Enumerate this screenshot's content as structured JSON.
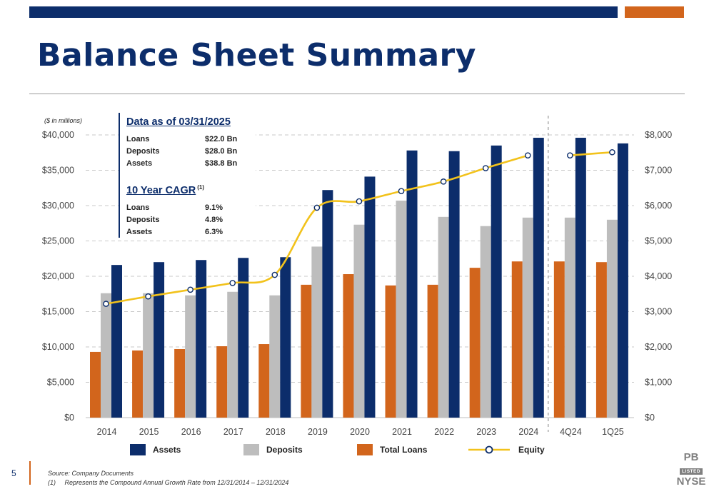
{
  "header": {
    "title": "Balance Sheet Summary"
  },
  "units_note": "($ in millions)",
  "info_box": {
    "heading": "Data as of 03/31/2025",
    "rows": [
      {
        "label": "Loans",
        "value": "$22.0 Bn"
      },
      {
        "label": "Deposits",
        "value": "$28.0 Bn"
      },
      {
        "label": "Assets",
        "value": "$38.8 Bn"
      }
    ],
    "cagr_heading": "10 Year CAGR",
    "cagr_note": "(1)",
    "cagr_rows": [
      {
        "label": "Loans",
        "value": "9.1%"
      },
      {
        "label": "Deposits",
        "value": "4.8%"
      },
      {
        "label": "Assets",
        "value": "6.3%"
      }
    ]
  },
  "legend": [
    {
      "label": "Assets",
      "color": "#0c2d6b",
      "type": "bar"
    },
    {
      "label": "Deposits",
      "color": "#bdbdbd",
      "type": "bar"
    },
    {
      "label": "Total Loans",
      "color": "#d2651c",
      "type": "bar"
    },
    {
      "label": "Equity",
      "color": "#f2c21b",
      "type": "line"
    }
  ],
  "chart_data": {
    "type": "bar",
    "categories": [
      "2014",
      "2015",
      "2016",
      "2017",
      "2018",
      "2019",
      "2020",
      "2021",
      "2022",
      "2023",
      "2024",
      "4Q24",
      "1Q25"
    ],
    "series": [
      {
        "name": "Total Loans",
        "axis": "left",
        "color": "#d2651c",
        "values": [
          9300,
          9500,
          9700,
          10100,
          10400,
          18800,
          20300,
          18700,
          18800,
          21200,
          22100,
          22100,
          22000
        ]
      },
      {
        "name": "Deposits",
        "axis": "left",
        "color": "#bdbdbd",
        "values": [
          17600,
          17600,
          17300,
          17800,
          17300,
          24200,
          27300,
          30700,
          28400,
          27100,
          28300,
          28300,
          28000
        ]
      },
      {
        "name": "Assets",
        "axis": "left",
        "color": "#0c2d6b",
        "values": [
          21600,
          22000,
          22300,
          22600,
          22700,
          32200,
          34100,
          37800,
          37700,
          38500,
          39600,
          39600,
          38800
        ]
      },
      {
        "name": "Equity",
        "axis": "right",
        "type": "line",
        "color": "#f2c21b",
        "values": [
          3220,
          3430,
          3620,
          3810,
          4040,
          5940,
          6120,
          6410,
          6680,
          7060,
          7420,
          7420,
          7510
        ]
      }
    ],
    "ylim_left": [
      0,
      40000
    ],
    "ylim_right": [
      0,
      8000
    ],
    "left_ticks": [
      "$0",
      "$5,000",
      "$10,000",
      "$15,000",
      "$20,000",
      "$25,000",
      "$30,000",
      "$35,000",
      "$40,000"
    ],
    "right_ticks": [
      "$0",
      "$1,000",
      "$2,000",
      "$3,000",
      "$4,000",
      "$5,000",
      "$6,000",
      "$7,000",
      "$8,000"
    ],
    "grid": true,
    "divider_between": [
      "2024",
      "4Q24"
    ]
  },
  "footer": {
    "page_number": "5",
    "source": "Source: Company Documents",
    "footnote": "(1)     Represents the Compound Annual Growth Rate from 12/31/2014 – 12/31/2024"
  },
  "logo": {
    "top": "PB",
    "middle": "LISTED",
    "bottom": "NYSE"
  }
}
